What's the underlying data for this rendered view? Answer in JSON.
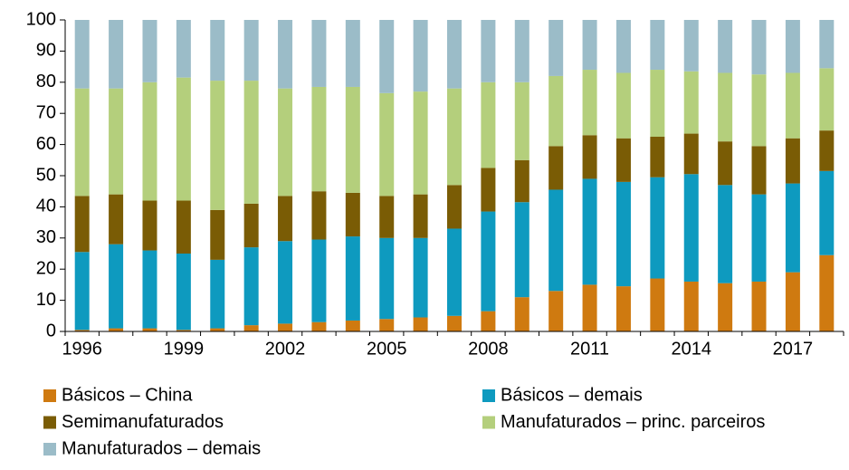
{
  "chart_data": {
    "type": "stacked_bar",
    "categories": [
      "1996",
      null,
      null,
      "1999",
      null,
      null,
      "2002",
      null,
      null,
      "2005",
      null,
      null,
      "2008",
      null,
      null,
      "2011",
      null,
      null,
      "2014",
      null,
      null,
      "2017",
      null
    ],
    "series": [
      {
        "name": "Básicos – China",
        "color": "#cf7a10",
        "values": [
          0.5,
          1,
          1,
          0.5,
          1,
          2,
          2.5,
          3,
          3.5,
          4,
          4.5,
          5,
          6.5,
          11,
          13,
          15,
          14.5,
          17,
          16,
          15.5,
          16,
          19,
          24.5
        ]
      },
      {
        "name": "Básicos – demais",
        "color": "#0e9abf",
        "values": [
          25,
          27,
          25,
          24.5,
          22,
          25,
          26.5,
          26.5,
          27,
          26,
          25.5,
          28,
          32,
          30.5,
          32.5,
          34,
          33.5,
          32.5,
          34.5,
          31.5,
          28,
          28.5,
          27
        ]
      },
      {
        "name": "Semimanufaturados",
        "color": "#7a5c05",
        "values": [
          18,
          16,
          16,
          17,
          16,
          14,
          14.5,
          15.5,
          14,
          13.5,
          14,
          14,
          14,
          13.5,
          14,
          14,
          14,
          13,
          13,
          14,
          15.5,
          14.5,
          13
        ]
      },
      {
        "name": "Manufaturados – princ. parceiros",
        "color": "#b4cf7c",
        "values": [
          34.5,
          34,
          38,
          39.5,
          41.5,
          39.5,
          34.5,
          33.5,
          34,
          33,
          33,
          31,
          27.5,
          25,
          22.5,
          21,
          21,
          21.5,
          20,
          22,
          23,
          21,
          20
        ]
      },
      {
        "name": "Manufaturados – demais",
        "color": "#9bbcc8",
        "values": [
          22,
          22,
          20,
          18.5,
          19.5,
          19.5,
          22,
          21.5,
          21.5,
          23.5,
          23,
          22,
          20,
          20,
          18,
          16,
          17,
          16,
          16.5,
          17,
          17.5,
          17,
          15.5
        ]
      }
    ],
    "ylim": [
      0,
      100
    ],
    "yticks": [
      0,
      10,
      20,
      30,
      40,
      50,
      60,
      70,
      80,
      90,
      100
    ]
  }
}
